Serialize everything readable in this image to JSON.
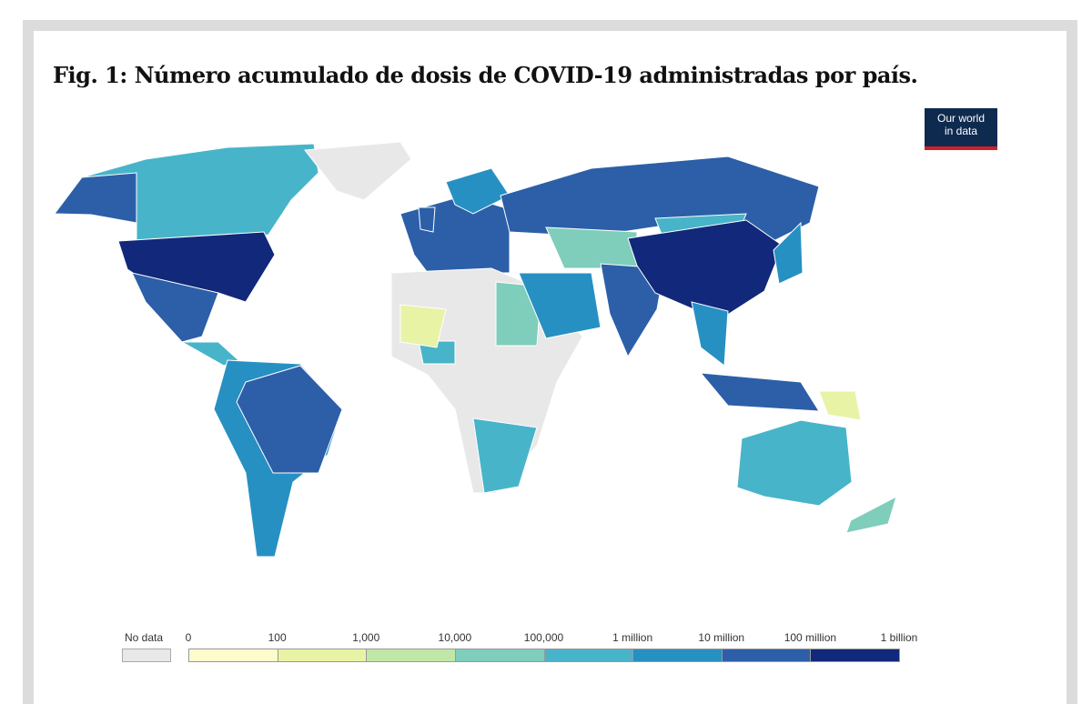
{
  "title": "Fig. 1: Número acumulado de dosis de COVID-19 administradas por país.",
  "logo": {
    "line1": "Our world",
    "line2": "in data"
  },
  "legend": {
    "no_data_label": "No data",
    "no_data_color": "#e8e8e8",
    "ticks": [
      "0",
      "100",
      "1,000",
      "10,000",
      "100,000",
      "1 million",
      "10 million",
      "100 million",
      "1 billion"
    ],
    "bin_colors": [
      "#fdfdcc",
      "#e9f3a6",
      "#c2e6a7",
      "#7fcdbb",
      "#48b4c9",
      "#2790c3",
      "#2c5fa8",
      "#12287a"
    ]
  }
}
